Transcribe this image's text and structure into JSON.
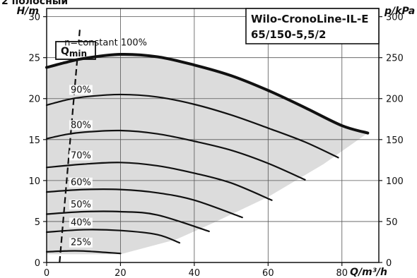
{
  "page_header": "2 полосный",
  "chart_data": {
    "type": "line",
    "title_lines": [
      "Wilo-CronoLine-IL-E",
      "65/150-5,5/2"
    ],
    "xlabel": "Q/m³/h",
    "ylabel": "H/m",
    "y2label": "p/kPa",
    "xlim": [
      0,
      90
    ],
    "ylim": [
      0,
      31
    ],
    "y2lim": [
      0,
      310
    ],
    "x_ticks": [
      "0",
      "20",
      "40",
      "60",
      "80"
    ],
    "y_ticks": [
      "0",
      "5",
      "10",
      "15",
      "20",
      "25",
      "30"
    ],
    "y2_ticks": [
      "0",
      "50",
      "100",
      "150",
      "200",
      "250",
      "300"
    ],
    "grid": true,
    "qmin_label": "Q",
    "qmin_sub": "min",
    "qmin_line": [
      [
        3.5,
        0
      ],
      [
        9,
        28.5
      ]
    ],
    "series": [
      {
        "name": "n=constant 100%",
        "x": [
          0,
          5,
          10,
          20,
          30,
          40,
          50,
          60,
          70,
          80,
          87
        ],
        "y": [
          23.8,
          24.4,
          24.9,
          25.4,
          25.1,
          24.1,
          22.8,
          21.0,
          18.9,
          16.7,
          15.8
        ]
      },
      {
        "name": "90%",
        "x": [
          0,
          5,
          10,
          20,
          30,
          40,
          50,
          60,
          70,
          79
        ],
        "y": [
          19.2,
          19.8,
          20.2,
          20.5,
          20.2,
          19.3,
          18.0,
          16.4,
          14.7,
          12.8
        ]
      },
      {
        "name": "80%",
        "x": [
          0,
          5,
          10,
          20,
          30,
          40,
          50,
          60,
          70
        ],
        "y": [
          15.1,
          15.6,
          15.9,
          16.1,
          15.7,
          14.8,
          13.7,
          12.1,
          10.1
        ]
      },
      {
        "name": "70%",
        "x": [
          0,
          10,
          20,
          30,
          40,
          50,
          61
        ],
        "y": [
          11.6,
          12.0,
          12.2,
          11.8,
          10.9,
          9.7,
          7.6
        ]
      },
      {
        "name": "60%",
        "x": [
          0,
          10,
          20,
          30,
          40,
          53
        ],
        "y": [
          8.6,
          8.9,
          8.9,
          8.5,
          7.6,
          5.5
        ]
      },
      {
        "name": "50%",
        "x": [
          0,
          10,
          20,
          30,
          44
        ],
        "y": [
          5.9,
          6.2,
          6.2,
          5.8,
          3.8
        ]
      },
      {
        "name": "40%",
        "x": [
          0,
          10,
          20,
          30,
          36
        ],
        "y": [
          3.7,
          4.0,
          3.9,
          3.4,
          2.4
        ]
      },
      {
        "name": "25%",
        "x": [
          0,
          5,
          10,
          20
        ],
        "y": [
          1.3,
          1.4,
          1.4,
          1.1
        ]
      }
    ],
    "operating_area": [
      [
        0,
        23.8
      ],
      [
        5,
        24.4
      ],
      [
        10,
        24.9
      ],
      [
        20,
        25.4
      ],
      [
        30,
        25.1
      ],
      [
        40,
        24.1
      ],
      [
        50,
        22.8
      ],
      [
        60,
        21.0
      ],
      [
        70,
        18.9
      ],
      [
        80,
        16.7
      ],
      [
        87,
        15.8
      ],
      [
        75,
        12.0
      ],
      [
        60,
        8.0
      ],
      [
        45,
        4.8
      ],
      [
        35,
        2.8
      ],
      [
        20,
        1.0
      ],
      [
        0,
        1.0
      ]
    ]
  }
}
